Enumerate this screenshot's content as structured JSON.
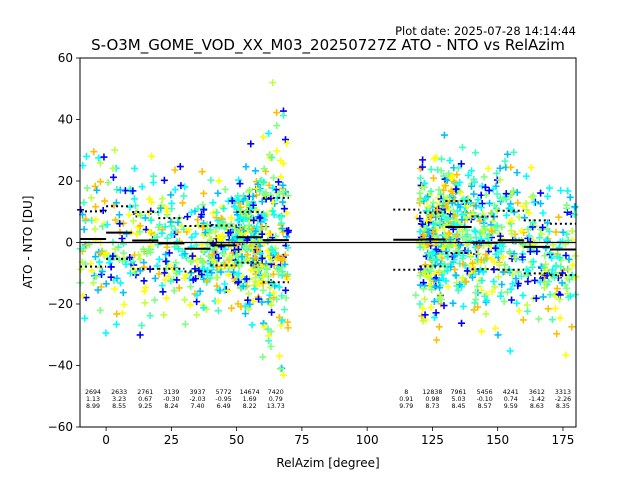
{
  "chart_data": {
    "type": "scatter",
    "plot_date": "Plot date: 2025-07-28 14:14:44",
    "title": "S-O3M_GOME_VOD_XX_M03_20250727Z ATO - NTO vs RelAzim",
    "xlabel": "RelAzim [degree]",
    "ylabel": "ATO - NTO [DU]",
    "xlim": [
      -10,
      180
    ],
    "ylim": [
      -60,
      60
    ],
    "xticks": [
      0,
      25,
      50,
      75,
      100,
      125,
      150,
      175
    ],
    "yticks": [
      -60,
      -40,
      -20,
      0,
      20,
      40,
      60
    ],
    "zero_line": 0,
    "marker": "+",
    "grid": false,
    "legend": "none",
    "bin_width": 10,
    "bins": [
      {
        "center": -5,
        "count": "2694",
        "mean": "1.13",
        "std": "8.99"
      },
      {
        "center": 5,
        "count": "2633",
        "mean": "3.23",
        "std": "8.55"
      },
      {
        "center": 15,
        "count": "2761",
        "mean": "0.67",
        "std": "9.25"
      },
      {
        "center": 25,
        "count": "3139",
        "mean": "-0.30",
        "std": "8.24"
      },
      {
        "center": 35,
        "count": "3937",
        "mean": "-2.03",
        "std": "7.40"
      },
      {
        "center": 45,
        "count": "5772",
        "mean": "-0.95",
        "std": "6.49"
      },
      {
        "center": 55,
        "count": "14674",
        "mean": "1.69",
        "std": "8.22"
      },
      {
        "center": 65,
        "count": "7420",
        "mean": "0.79",
        "std": "13.73"
      },
      {
        "center": 115,
        "count": "8",
        "mean": "0.91",
        "std": "9.79"
      },
      {
        "center": 125,
        "count": "12838",
        "mean": "0.98",
        "std": "8.73"
      },
      {
        "center": 135,
        "count": "7961",
        "mean": "5.03",
        "std": "8.45"
      },
      {
        "center": 145,
        "count": "5456",
        "mean": "-0.10",
        "std": "8.57"
      },
      {
        "center": 155,
        "count": "4241",
        "mean": "0.74",
        "std": "9.59"
      },
      {
        "center": 165,
        "count": "3612",
        "mean": "-1.42",
        "std": "8.63"
      },
      {
        "center": 175,
        "count": "3313",
        "mean": "-2.26",
        "std": "8.35"
      }
    ],
    "point_colors": [
      "#00bfff",
      "#3fffbf",
      "#bfff3f",
      "#ffff00",
      "#ffbf00",
      "#00ffff",
      "#0000ff",
      "#7fff7f"
    ]
  }
}
